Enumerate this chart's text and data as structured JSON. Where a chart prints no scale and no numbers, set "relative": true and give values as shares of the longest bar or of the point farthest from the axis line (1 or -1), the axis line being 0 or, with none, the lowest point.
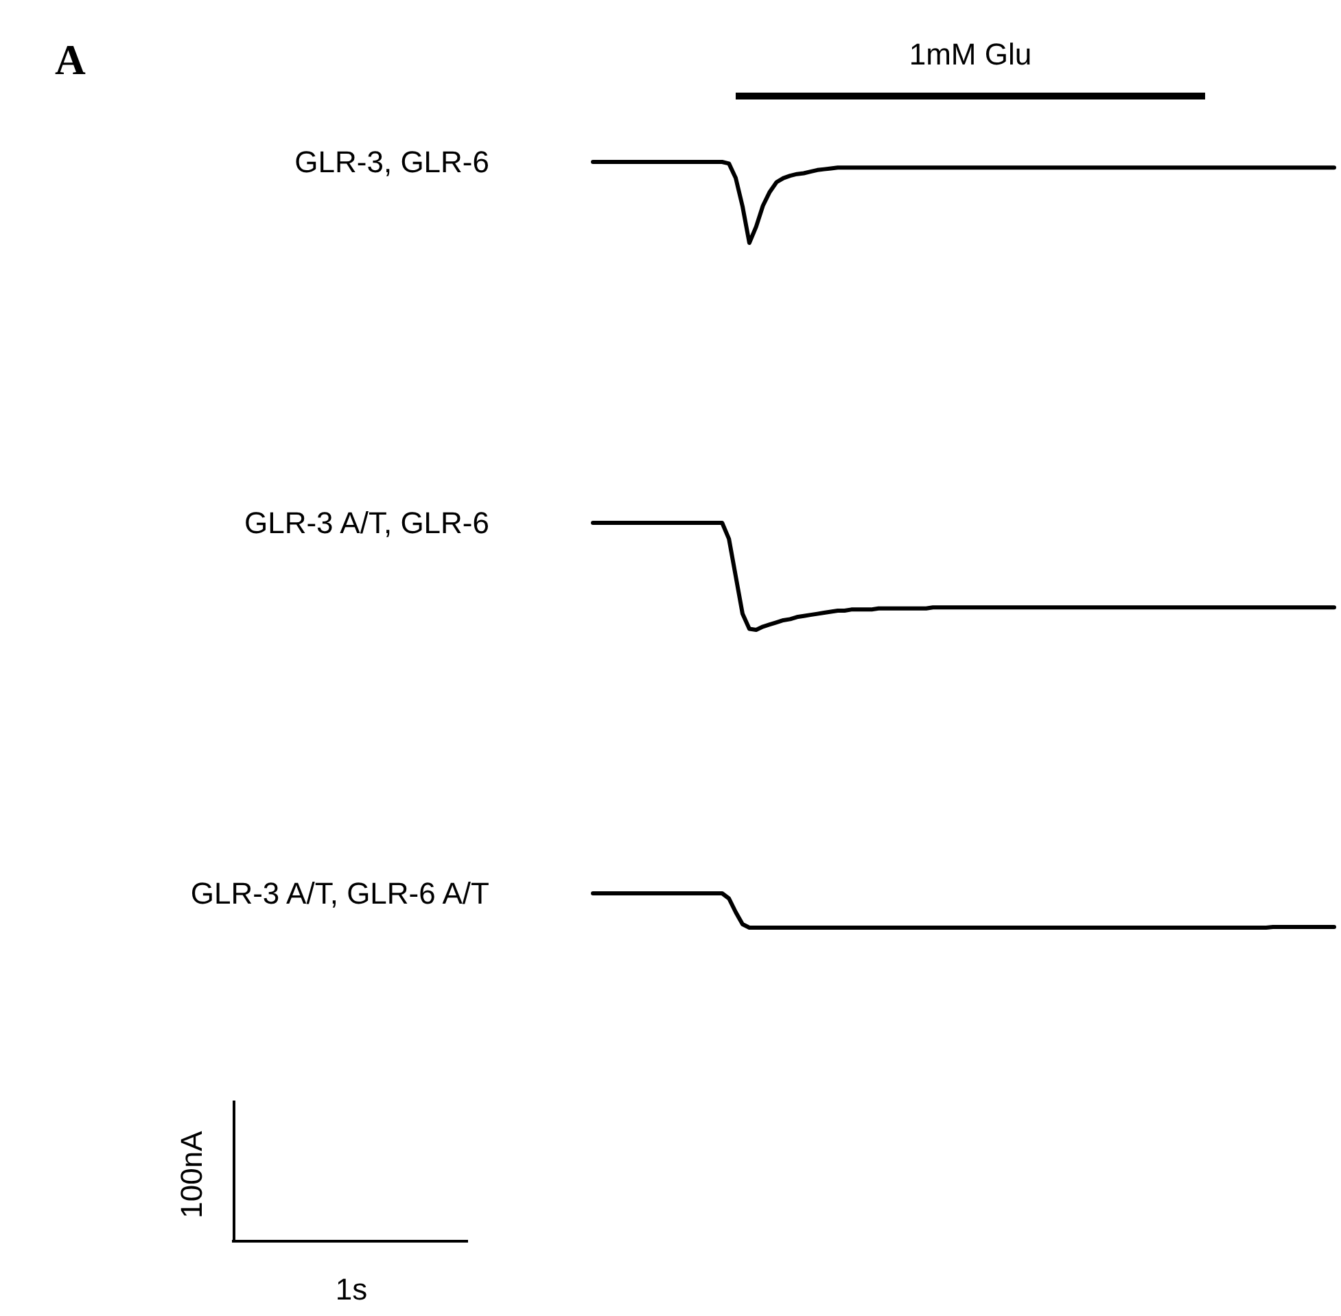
{
  "chart_data": [
    {
      "type": "line",
      "annotations": [
        "A",
        "1mM Glu"
      ],
      "relative": true,
      "categories": [
        null,
        null,
        null,
        null,
        null,
        null,
        null,
        null,
        null,
        null,
        null,
        null,
        null,
        null,
        null,
        null,
        null,
        null,
        null,
        null,
        null,
        null,
        null,
        null,
        null,
        null,
        null,
        null,
        null,
        null,
        null,
        null,
        null,
        null,
        null,
        null,
        null,
        null,
        null,
        null,
        null,
        null,
        null,
        null,
        null,
        null,
        null,
        null,
        null,
        null,
        null,
        null,
        null,
        null,
        null,
        null,
        null,
        null,
        null,
        null,
        null,
        null,
        null,
        null,
        null,
        null,
        null,
        null,
        null,
        null,
        null,
        null,
        null,
        null,
        null,
        null,
        null,
        null,
        null,
        null,
        null,
        null,
        null,
        null,
        null,
        null,
        null,
        null,
        null,
        null,
        null,
        null,
        null,
        null,
        null,
        null,
        null,
        null,
        null,
        null,
        null,
        null,
        null,
        null,
        null,
        null,
        null,
        null,
        null,
        null
      ],
      "series": [
        {
          "name": "GLR-3, GLR-6",
          "color": "#000000",
          "values": [
            1,
            1,
            1,
            1,
            1,
            1,
            1,
            1,
            1,
            1,
            1,
            1,
            1,
            1,
            1,
            1,
            1,
            1,
            1,
            1,
            0.98,
            0.8,
            0.45,
            0,
            0.2,
            0.46,
            0.63,
            0.75,
            0.8,
            0.83,
            0.85,
            0.86,
            0.88,
            0.9,
            0.91,
            0.92,
            0.93,
            0.93,
            0.93,
            0.93,
            0.93,
            0.93,
            0.93,
            0.93,
            0.93,
            0.93,
            0.93,
            0.93,
            0.93,
            0.93,
            0.93,
            0.93,
            0.93,
            0.93,
            0.93,
            0.93,
            0.93,
            0.93,
            0.93,
            0.93,
            0.93,
            0.93,
            0.93,
            0.93,
            0.93,
            0.93,
            0.93,
            0.93,
            0.93,
            0.93,
            0.93,
            0.93,
            0.93,
            0.93,
            0.93,
            0.93,
            0.93,
            0.93,
            0.93,
            0.93,
            0.93,
            0.93,
            0.93,
            0.93,
            0.93,
            0.93,
            0.93,
            0.93,
            0.93,
            0.93,
            0.93,
            0.93,
            0.93,
            0.93,
            0.93,
            0.93,
            0.93,
            0.93,
            0.93,
            0.93,
            0.93,
            0.93,
            0.93,
            0.93,
            0.93,
            0.93,
            0.93,
            0.93,
            0.93,
            0.93
          ]
        }
      ]
    },
    {
      "type": "line",
      "relative": true,
      "categories": [
        null,
        null,
        null,
        null,
        null,
        null,
        null,
        null,
        null,
        null,
        null,
        null,
        null,
        null,
        null,
        null,
        null,
        null,
        null,
        null,
        null,
        null,
        null,
        null,
        null,
        null,
        null,
        null,
        null,
        null,
        null,
        null,
        null,
        null,
        null,
        null,
        null,
        null,
        null,
        null,
        null,
        null,
        null,
        null,
        null,
        null,
        null,
        null,
        null,
        null,
        null,
        null,
        null,
        null,
        null,
        null,
        null,
        null,
        null,
        null,
        null,
        null,
        null,
        null,
        null,
        null,
        null,
        null,
        null,
        null,
        null,
        null,
        null,
        null,
        null,
        null,
        null,
        null,
        null,
        null,
        null,
        null,
        null,
        null,
        null,
        null,
        null,
        null,
        null,
        null,
        null,
        null,
        null,
        null,
        null,
        null,
        null,
        null,
        null,
        null,
        null,
        null,
        null,
        null,
        null,
        null,
        null,
        null,
        null,
        null
      ],
      "series": [
        {
          "name": "GLR-3 A/T, GLR-6",
          "color": "#000000",
          "values": [
            1,
            1,
            1,
            1,
            1,
            1,
            1,
            1,
            1,
            1,
            1,
            1,
            1,
            1,
            1,
            1,
            1,
            1,
            1,
            1,
            0.85,
            0.5,
            0.15,
            0.01,
            0,
            0.03,
            0.05,
            0.07,
            0.09,
            0.1,
            0.12,
            0.13,
            0.14,
            0.15,
            0.16,
            0.17,
            0.18,
            0.18,
            0.19,
            0.19,
            0.19,
            0.19,
            0.2,
            0.2,
            0.2,
            0.2,
            0.2,
            0.2,
            0.2,
            0.2,
            0.21,
            0.21,
            0.21,
            0.21,
            0.21,
            0.21,
            0.21,
            0.21,
            0.21,
            0.21,
            0.21,
            0.21,
            0.21,
            0.21,
            0.21,
            0.21,
            0.21,
            0.21,
            0.21,
            0.21,
            0.21,
            0.21,
            0.21,
            0.21,
            0.21,
            0.21,
            0.21,
            0.21,
            0.21,
            0.21,
            0.21,
            0.21,
            0.21,
            0.21,
            0.21,
            0.21,
            0.21,
            0.21,
            0.21,
            0.21,
            0.21,
            0.21,
            0.21,
            0.21,
            0.21,
            0.21,
            0.21,
            0.21,
            0.21,
            0.21,
            0.21,
            0.21,
            0.21,
            0.21,
            0.21,
            0.21,
            0.21,
            0.21,
            0.21,
            0.21
          ]
        }
      ]
    },
    {
      "type": "line",
      "relative": true,
      "annotations": [
        "100nA",
        "1s"
      ],
      "categories": [
        null,
        null,
        null,
        null,
        null,
        null,
        null,
        null,
        null,
        null,
        null,
        null,
        null,
        null,
        null,
        null,
        null,
        null,
        null,
        null,
        null,
        null,
        null,
        null,
        null,
        null,
        null,
        null,
        null,
        null,
        null,
        null,
        null,
        null,
        null,
        null,
        null,
        null,
        null,
        null,
        null,
        null,
        null,
        null,
        null,
        null,
        null,
        null,
        null,
        null,
        null,
        null,
        null,
        null,
        null,
        null,
        null,
        null,
        null,
        null,
        null,
        null,
        null,
        null,
        null,
        null,
        null,
        null,
        null,
        null,
        null,
        null,
        null,
        null,
        null,
        null,
        null,
        null,
        null,
        null,
        null,
        null,
        null,
        null,
        null,
        null,
        null,
        null,
        null,
        null,
        null,
        null,
        null,
        null,
        null,
        null,
        null,
        null,
        null,
        null,
        null,
        null,
        null,
        null,
        null,
        null,
        null,
        null,
        null,
        null
      ],
      "series": [
        {
          "name": "GLR-3 A/T, GLR-6 A/T",
          "color": "#000000",
          "values": [
            1,
            1,
            1,
            1,
            1,
            1,
            1,
            1,
            1,
            1,
            1,
            1,
            1,
            1,
            1,
            1,
            1,
            1,
            1,
            1,
            0.85,
            0.45,
            0.1,
            0,
            0,
            0,
            0,
            0,
            0,
            0,
            0,
            0,
            0,
            0,
            0,
            0,
            0,
            0,
            0,
            0,
            0,
            0,
            0,
            0,
            0,
            0,
            0,
            0,
            0,
            0,
            0,
            0,
            0,
            0,
            0,
            0,
            0,
            0,
            0,
            0,
            0,
            0,
            0,
            0,
            0,
            0,
            0,
            0,
            0,
            0,
            0,
            0,
            0,
            0,
            0,
            0,
            0,
            0,
            0,
            0,
            0,
            0,
            0,
            0,
            0,
            0,
            0,
            0,
            0,
            0,
            0,
            0,
            0,
            0,
            0,
            0,
            0,
            0,
            0,
            0,
            0.02,
            0.02,
            0.02,
            0.02,
            0.02,
            0.02,
            0.02,
            0.02,
            0.02,
            0.02
          ]
        }
      ]
    }
  ]
}
